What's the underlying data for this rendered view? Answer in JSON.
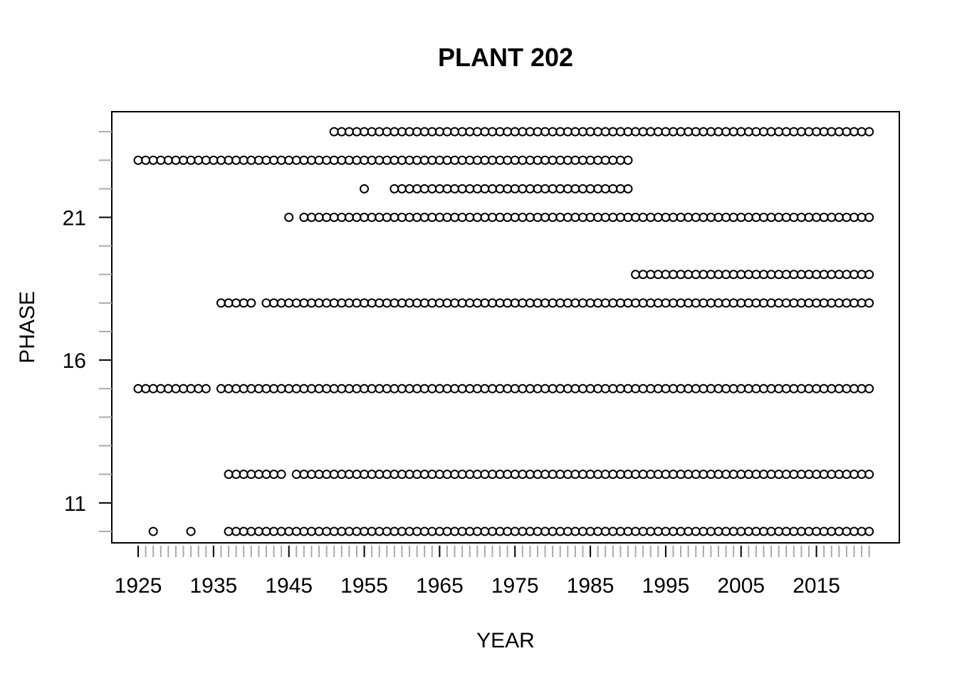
{
  "chart_data": {
    "type": "scatter",
    "title": "PLANT 202",
    "xlabel": "YEAR",
    "ylabel": "PHASE",
    "xlim": [
      1921.5,
      2026.0
    ],
    "ylim": [
      9.6,
      24.7
    ],
    "x_major_ticks": [
      1925,
      1935,
      1945,
      1955,
      1965,
      1975,
      1985,
      1995,
      2005,
      2015
    ],
    "x_tick_labels": [
      "1925",
      "1935",
      "1945",
      "1955",
      "1965",
      "1975",
      "1985",
      "1995",
      "2005",
      "2015"
    ],
    "x_minor_range": [
      1925,
      2022
    ],
    "y_major_ticks": [
      11,
      16,
      21
    ],
    "y_tick_labels": [
      "11",
      "16",
      "21"
    ],
    "y_minor_ticks": [
      10,
      12,
      13,
      14,
      15,
      17,
      18,
      19,
      20,
      22,
      23,
      24
    ],
    "grid": false,
    "legend": "none",
    "series": [
      {
        "y": 10,
        "x": [
          1927,
          1932
        ],
        "ranges": [
          [
            1937,
            2022
          ]
        ]
      },
      {
        "y": 12,
        "ranges": [
          [
            1937,
            1944
          ],
          [
            1946,
            2022
          ]
        ]
      },
      {
        "y": 15,
        "ranges": [
          [
            1925,
            1934
          ],
          [
            1936,
            2022
          ]
        ]
      },
      {
        "y": 18,
        "ranges": [
          [
            1936,
            1940
          ],
          [
            1942,
            2022
          ]
        ]
      },
      {
        "y": 19,
        "ranges": [
          [
            1991,
            2022
          ]
        ]
      },
      {
        "y": 21,
        "x": [
          1945
        ],
        "ranges": [
          [
            1947,
            2022
          ]
        ]
      },
      {
        "y": 22,
        "x": [
          1955
        ],
        "ranges": [
          [
            1959,
            1990
          ]
        ]
      },
      {
        "y": 23,
        "ranges": [
          [
            1925,
            1990
          ]
        ]
      },
      {
        "y": 24,
        "ranges": [
          [
            1951,
            2022
          ]
        ]
      }
    ]
  }
}
